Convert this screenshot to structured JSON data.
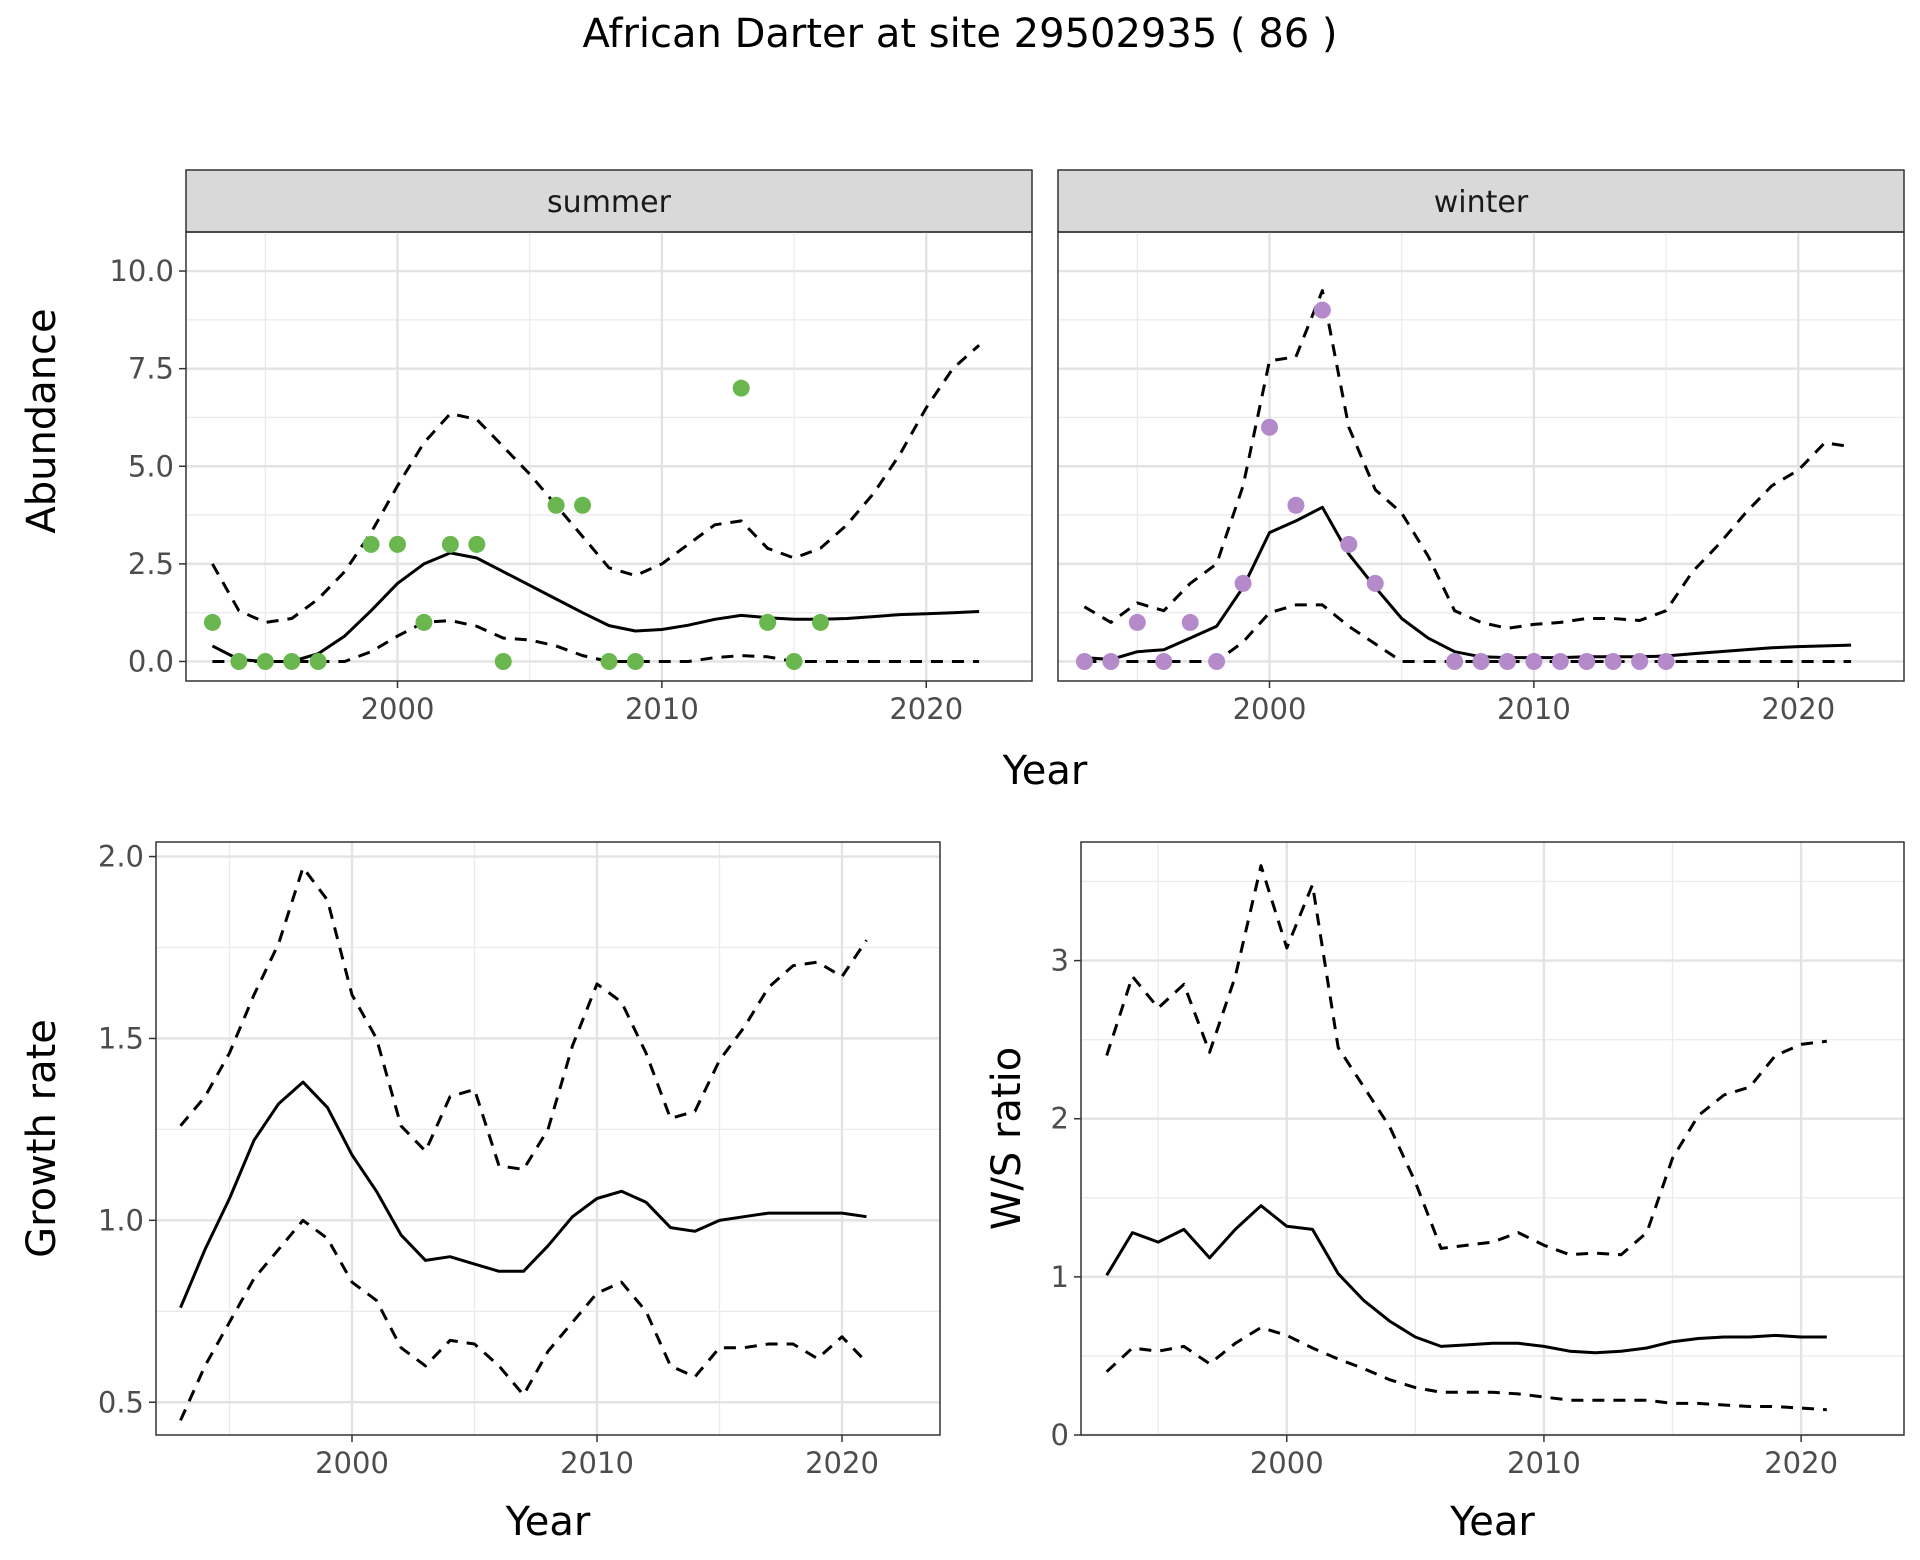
{
  "figure": {
    "title": "African Darter at site 29502935 ( 86 )"
  },
  "chart_data": [
    {
      "type": "line",
      "facet": "summer",
      "xlabel": "Year",
      "ylabel": "Abundance",
      "xlim": [
        1992,
        2024
      ],
      "ylim": [
        -0.5,
        11.0
      ],
      "xticks": [
        2000,
        2010,
        2020
      ],
      "yticks": [
        0.0,
        2.5,
        5.0,
        7.5,
        10.0
      ],
      "ytick_labels": [
        "0.0",
        "2.5",
        "5.0",
        "7.5",
        "10.0"
      ],
      "grid": true,
      "point_color": "#6ab750",
      "series": [
        {
          "role": "fit",
          "style": "solid",
          "x": [
            1993,
            1994,
            1995,
            1996,
            1997,
            1998,
            1999,
            2000,
            2001,
            2002,
            2003,
            2004,
            2005,
            2006,
            2007,
            2008,
            2009,
            2010,
            2011,
            2012,
            2013,
            2014,
            2015,
            2016,
            2017,
            2018,
            2019,
            2020,
            2021,
            2022
          ],
          "y": [
            0.4,
            0.05,
            0.0,
            0.0,
            0.2,
            0.65,
            1.3,
            2.0,
            2.5,
            2.78,
            2.65,
            2.3,
            1.95,
            1.6,
            1.25,
            0.92,
            0.78,
            0.82,
            0.93,
            1.08,
            1.18,
            1.12,
            1.08,
            1.08,
            1.1,
            1.15,
            1.2,
            1.22,
            1.25,
            1.28
          ]
        },
        {
          "role": "upper",
          "style": "dashed",
          "x": [
            1993,
            1994,
            1995,
            1996,
            1997,
            1998,
            1999,
            2000,
            2001,
            2002,
            2003,
            2004,
            2005,
            2006,
            2007,
            2008,
            2009,
            2010,
            2011,
            2012,
            2013,
            2014,
            2015,
            2016,
            2017,
            2018,
            2019,
            2020,
            2021,
            2022
          ],
          "y": [
            2.5,
            1.3,
            1.0,
            1.1,
            1.6,
            2.3,
            3.3,
            4.5,
            5.6,
            6.35,
            6.2,
            5.5,
            4.8,
            4.0,
            3.2,
            2.4,
            2.2,
            2.5,
            3.0,
            3.5,
            3.6,
            2.9,
            2.65,
            2.9,
            3.5,
            4.3,
            5.3,
            6.5,
            7.5,
            8.1
          ]
        },
        {
          "role": "lower",
          "style": "dashed",
          "x": [
            1993,
            1994,
            1995,
            1996,
            1997,
            1998,
            1999,
            2000,
            2001,
            2002,
            2003,
            2004,
            2005,
            2006,
            2007,
            2008,
            2009,
            2010,
            2011,
            2012,
            2013,
            2014,
            2015,
            2016,
            2017,
            2018,
            2019,
            2020,
            2021,
            2022
          ],
          "y": [
            0.0,
            0.0,
            0.0,
            0.0,
            0.0,
            0.0,
            0.25,
            0.65,
            1.0,
            1.05,
            0.9,
            0.6,
            0.55,
            0.4,
            0.15,
            0.0,
            0.0,
            0.0,
            0.0,
            0.1,
            0.15,
            0.12,
            0.0,
            0.0,
            0.0,
            0.0,
            0.0,
            0.0,
            0.0,
            0.0
          ]
        }
      ],
      "points": {
        "x": [
          1993,
          1994,
          1995,
          1996,
          1997,
          1999,
          2000,
          2001,
          2002,
          2003,
          2004,
          2006,
          2007,
          2008,
          2009,
          2013,
          2014,
          2015,
          2016
        ],
        "y": [
          1,
          0,
          0,
          0,
          0,
          3,
          3,
          1,
          3,
          3,
          0,
          4,
          4,
          0,
          0,
          7,
          1,
          0,
          1
        ]
      }
    },
    {
      "type": "line",
      "facet": "winter",
      "xlabel": "Year",
      "ylabel": "Abundance",
      "xlim": [
        1992,
        2024
      ],
      "ylim": [
        -0.5,
        11.0
      ],
      "xticks": [
        2000,
        2010,
        2020
      ],
      "yticks": [
        0.0,
        2.5,
        5.0,
        7.5,
        10.0
      ],
      "grid": true,
      "point_color": "#b58acb",
      "series": [
        {
          "role": "fit",
          "style": "solid",
          "x": [
            1993,
            1994,
            1995,
            1996,
            1997,
            1998,
            1999,
            2000,
            2001,
            2002,
            2003,
            2004,
            2005,
            2006,
            2007,
            2008,
            2009,
            2010,
            2011,
            2012,
            2013,
            2014,
            2015,
            2016,
            2017,
            2018,
            2019,
            2020,
            2021,
            2022
          ],
          "y": [
            0.1,
            0.05,
            0.25,
            0.3,
            0.6,
            0.9,
            1.9,
            3.3,
            3.6,
            3.95,
            2.75,
            1.9,
            1.1,
            0.6,
            0.25,
            0.12,
            0.1,
            0.1,
            0.1,
            0.12,
            0.12,
            0.12,
            0.14,
            0.2,
            0.25,
            0.3,
            0.35,
            0.38,
            0.4,
            0.42
          ]
        },
        {
          "role": "upper",
          "style": "dashed",
          "x": [
            1993,
            1994,
            1995,
            1996,
            1997,
            1998,
            1999,
            2000,
            2001,
            2002,
            2003,
            2004,
            2005,
            2006,
            2007,
            2008,
            2009,
            2010,
            2011,
            2012,
            2013,
            2014,
            2015,
            2016,
            2017,
            2018,
            2019,
            2020,
            2021,
            2022
          ],
          "y": [
            1.4,
            1.0,
            1.5,
            1.3,
            2.0,
            2.5,
            4.5,
            7.7,
            7.8,
            9.5,
            6.0,
            4.4,
            3.8,
            2.7,
            1.3,
            1.0,
            0.85,
            0.95,
            1.0,
            1.1,
            1.1,
            1.05,
            1.3,
            2.3,
            3.0,
            3.8,
            4.5,
            4.9,
            5.6,
            5.5
          ]
        },
        {
          "role": "lower",
          "style": "dashed",
          "x": [
            1993,
            1994,
            1995,
            1996,
            1997,
            1998,
            1999,
            2000,
            2001,
            2002,
            2003,
            2004,
            2005,
            2006,
            2007,
            2008,
            2009,
            2010,
            2011,
            2012,
            2013,
            2014,
            2015,
            2016,
            2017,
            2018,
            2019,
            2020,
            2021,
            2022
          ],
          "y": [
            0.0,
            0.0,
            0.0,
            0.0,
            0.0,
            0.0,
            0.5,
            1.25,
            1.45,
            1.45,
            0.9,
            0.45,
            0.0,
            0.0,
            0.0,
            0.0,
            0.0,
            0.0,
            0.0,
            0.0,
            0.0,
            0.0,
            0.0,
            0.0,
            0.0,
            0.0,
            0.0,
            0.0,
            0.0,
            0.0
          ]
        }
      ],
      "points": {
        "x": [
          1993,
          1994,
          1995,
          1996,
          1997,
          1998,
          1999,
          2000,
          2001,
          2002,
          2003,
          2004,
          2007,
          2008,
          2009,
          2010,
          2011,
          2012,
          2013,
          2014,
          2015
        ],
        "y": [
          0,
          0,
          1,
          0,
          1,
          0,
          2,
          6,
          4,
          9,
          3,
          2,
          0,
          0,
          0,
          0,
          0,
          0,
          0,
          0,
          0
        ]
      }
    },
    {
      "type": "line",
      "xlabel": "Year",
      "ylabel": "Growth rate",
      "xlim": [
        1992,
        2024
      ],
      "ylim": [
        0.41,
        2.04
      ],
      "xticks": [
        2000,
        2010,
        2020
      ],
      "yticks": [
        0.5,
        1.0,
        1.5,
        2.0
      ],
      "ytick_labels": [
        "0.5",
        "1.0",
        "1.5",
        "2.0"
      ],
      "grid": true,
      "series": [
        {
          "role": "fit",
          "style": "solid",
          "x": [
            1993,
            1994,
            1995,
            1996,
            1997,
            1998,
            1999,
            2000,
            2001,
            2002,
            2003,
            2004,
            2005,
            2006,
            2007,
            2008,
            2009,
            2010,
            2011,
            2012,
            2013,
            2014,
            2015,
            2016,
            2017,
            2018,
            2019,
            2020,
            2021
          ],
          "y": [
            0.76,
            0.92,
            1.06,
            1.22,
            1.32,
            1.38,
            1.31,
            1.18,
            1.08,
            0.96,
            0.89,
            0.9,
            0.88,
            0.86,
            0.86,
            0.93,
            1.01,
            1.06,
            1.08,
            1.05,
            0.98,
            0.97,
            1.0,
            1.01,
            1.02,
            1.02,
            1.02,
            1.02,
            1.01
          ]
        },
        {
          "role": "upper",
          "style": "dashed",
          "x": [
            1993,
            1994,
            1995,
            1996,
            1997,
            1998,
            1999,
            2000,
            2001,
            2002,
            2003,
            2004,
            2005,
            2006,
            2007,
            2008,
            2009,
            2010,
            2011,
            2012,
            2013,
            2014,
            2015,
            2016,
            2017,
            2018,
            2019,
            2020,
            2021
          ],
          "y": [
            1.26,
            1.34,
            1.46,
            1.62,
            1.76,
            1.97,
            1.88,
            1.62,
            1.5,
            1.26,
            1.19,
            1.34,
            1.36,
            1.15,
            1.14,
            1.25,
            1.48,
            1.65,
            1.6,
            1.46,
            1.28,
            1.3,
            1.44,
            1.53,
            1.64,
            1.7,
            1.71,
            1.67,
            1.77
          ]
        },
        {
          "role": "lower",
          "style": "dashed",
          "x": [
            1993,
            1994,
            1995,
            1996,
            1997,
            1998,
            1999,
            2000,
            2001,
            2002,
            2003,
            2004,
            2005,
            2006,
            2007,
            2008,
            2009,
            2010,
            2011,
            2012,
            2013,
            2014,
            2015,
            2016,
            2017,
            2018,
            2019,
            2020,
            2021
          ],
          "y": [
            0.45,
            0.6,
            0.72,
            0.84,
            0.92,
            1.0,
            0.95,
            0.83,
            0.78,
            0.65,
            0.6,
            0.67,
            0.66,
            0.6,
            0.52,
            0.64,
            0.72,
            0.8,
            0.83,
            0.75,
            0.6,
            0.57,
            0.65,
            0.65,
            0.66,
            0.66,
            0.62,
            0.68,
            0.61
          ]
        }
      ]
    },
    {
      "type": "line",
      "xlabel": "Year",
      "ylabel": "W/S ratio",
      "xlim": [
        1992,
        2024
      ],
      "ylim": [
        0,
        3.75
      ],
      "xticks": [
        2000,
        2010,
        2020
      ],
      "yticks": [
        0,
        1,
        2,
        3
      ],
      "ytick_labels": [
        "0",
        "1",
        "2",
        "3"
      ],
      "grid": true,
      "series": [
        {
          "role": "fit",
          "style": "solid",
          "x": [
            1993,
            1994,
            1995,
            1996,
            1997,
            1998,
            1999,
            2000,
            2001,
            2002,
            2003,
            2004,
            2005,
            2006,
            2007,
            2008,
            2009,
            2010,
            2011,
            2012,
            2013,
            2014,
            2015,
            2016,
            2017,
            2018,
            2019,
            2020,
            2021
          ],
          "y": [
            1.01,
            1.28,
            1.22,
            1.3,
            1.12,
            1.3,
            1.45,
            1.32,
            1.3,
            1.02,
            0.85,
            0.72,
            0.62,
            0.56,
            0.57,
            0.58,
            0.58,
            0.56,
            0.53,
            0.52,
            0.53,
            0.55,
            0.59,
            0.61,
            0.62,
            0.62,
            0.63,
            0.62,
            0.62
          ]
        },
        {
          "role": "upper",
          "style": "dashed",
          "x": [
            1993,
            1994,
            1995,
            1996,
            1997,
            1998,
            1999,
            2000,
            2001,
            2002,
            2003,
            2004,
            2005,
            2006,
            2007,
            2008,
            2009,
            2010,
            2011,
            2012,
            2013,
            2014,
            2015,
            2016,
            2017,
            2018,
            2019,
            2020,
            2021
          ],
          "y": [
            2.4,
            2.9,
            2.7,
            2.85,
            2.42,
            2.9,
            3.6,
            3.08,
            3.48,
            2.45,
            2.2,
            1.95,
            1.6,
            1.18,
            1.2,
            1.22,
            1.28,
            1.2,
            1.14,
            1.15,
            1.14,
            1.28,
            1.75,
            2.02,
            2.15,
            2.2,
            2.4,
            2.47,
            2.49
          ]
        },
        {
          "role": "lower",
          "style": "dashed",
          "x": [
            1993,
            1994,
            1995,
            1996,
            1997,
            1998,
            1999,
            2000,
            2001,
            2002,
            2003,
            2004,
            2005,
            2006,
            2007,
            2008,
            2009,
            2010,
            2011,
            2012,
            2013,
            2014,
            2015,
            2016,
            2017,
            2018,
            2019,
            2020,
            2021
          ],
          "y": [
            0.4,
            0.55,
            0.53,
            0.56,
            0.45,
            0.58,
            0.68,
            0.63,
            0.55,
            0.48,
            0.42,
            0.35,
            0.3,
            0.27,
            0.27,
            0.27,
            0.26,
            0.24,
            0.22,
            0.22,
            0.22,
            0.22,
            0.2,
            0.2,
            0.19,
            0.18,
            0.18,
            0.17,
            0.16
          ]
        }
      ]
    }
  ]
}
